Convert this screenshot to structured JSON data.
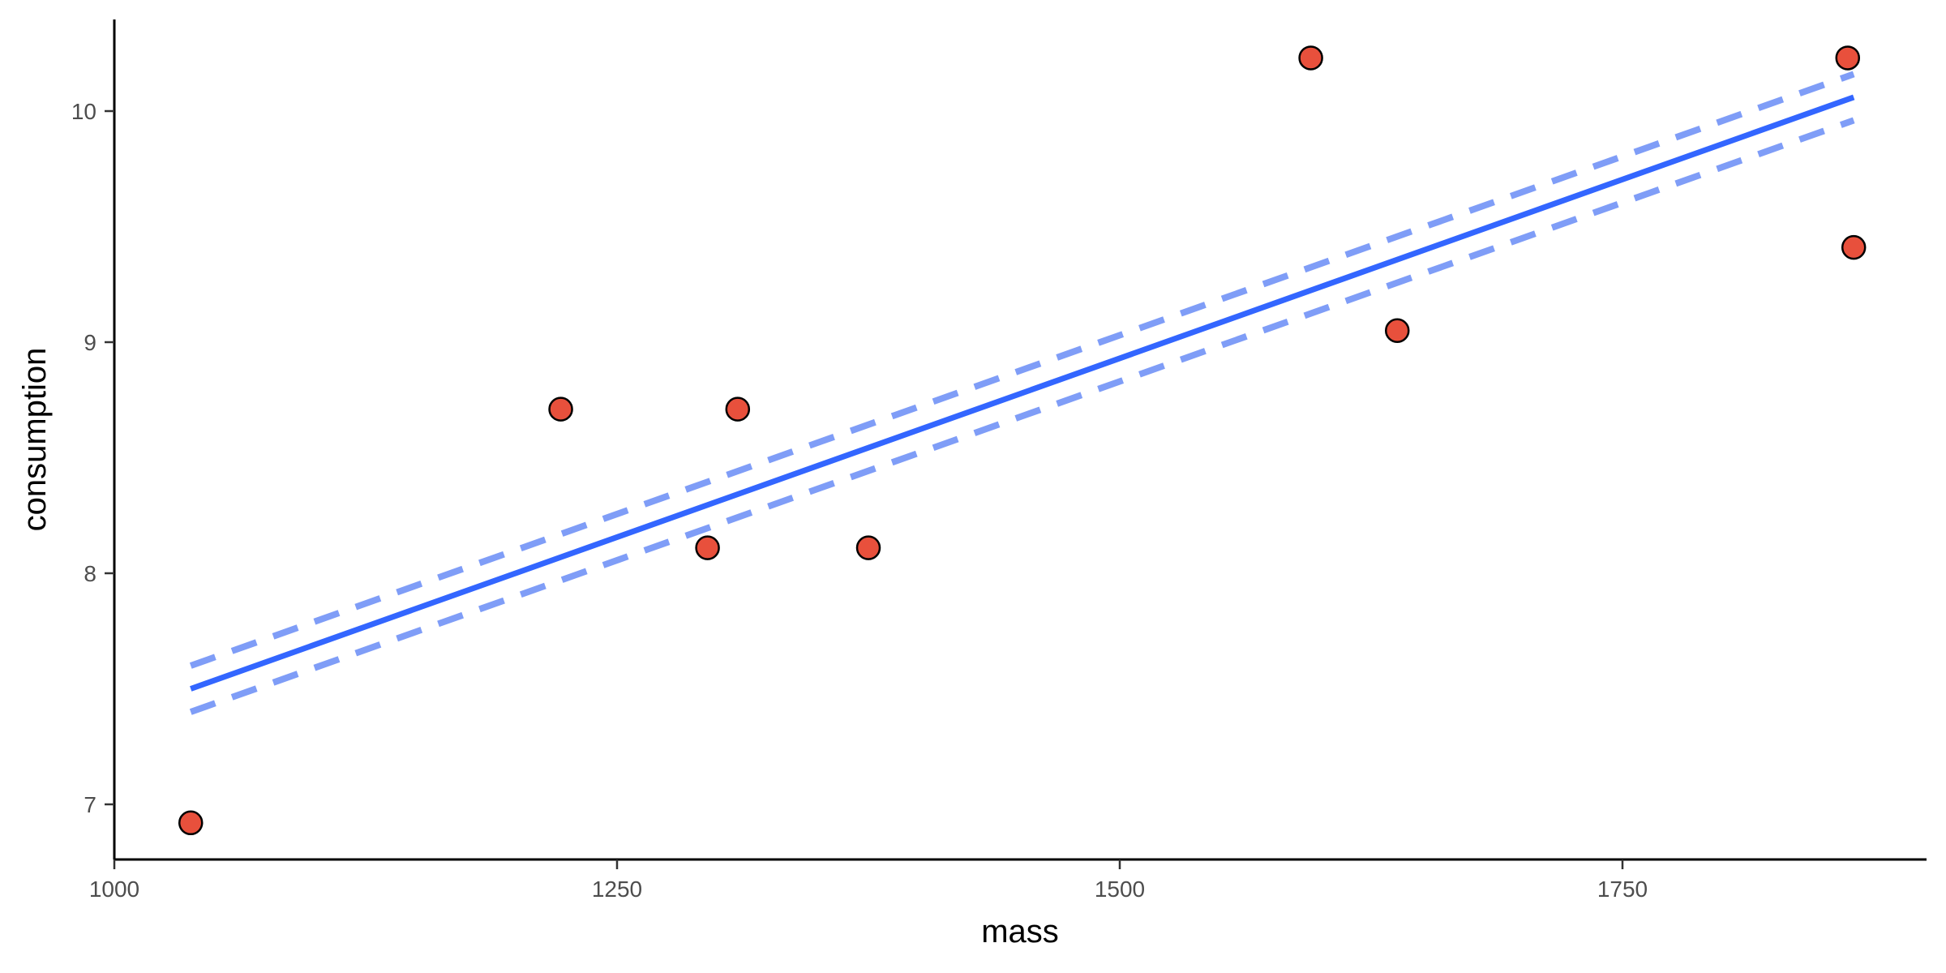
{
  "chart_data": {
    "type": "scatter",
    "xlabel": "mass",
    "ylabel": "consumption",
    "xlim": [
      1000,
      1900
    ],
    "ylim": [
      6.77,
      10.4
    ],
    "x_ticks": [
      1000,
      1250,
      1500,
      1750
    ],
    "x_tick_labels": [
      "1000",
      "1250",
      "1500",
      "1750"
    ],
    "y_ticks": [
      7,
      8,
      9,
      10
    ],
    "y_tick_labels": [
      "7",
      "8",
      "9",
      "10"
    ],
    "grid": false,
    "legend": "none",
    "points": [
      {
        "x": 1038,
        "y": 6.92
      },
      {
        "x": 1222,
        "y": 8.71
      },
      {
        "x": 1295,
        "y": 8.11
      },
      {
        "x": 1310,
        "y": 8.71
      },
      {
        "x": 1375,
        "y": 8.11
      },
      {
        "x": 1595,
        "y": 10.23
      },
      {
        "x": 1638,
        "y": 9.05
      },
      {
        "x": 1862,
        "y": 10.23
      },
      {
        "x": 1865,
        "y": 9.41
      }
    ],
    "fit_line": {
      "x": [
        1038,
        1865
      ],
      "y": [
        7.5,
        10.06
      ]
    },
    "fit_band_upper": {
      "x": [
        1038,
        1865
      ],
      "y": [
        7.6,
        10.16
      ]
    },
    "fit_band_lower": {
      "x": [
        1038,
        1865
      ],
      "y": [
        7.4,
        9.96
      ]
    },
    "colors": {
      "points": "#E8503C",
      "fit_line": "#3366FF",
      "fit_band": "#7F9DF7"
    }
  }
}
